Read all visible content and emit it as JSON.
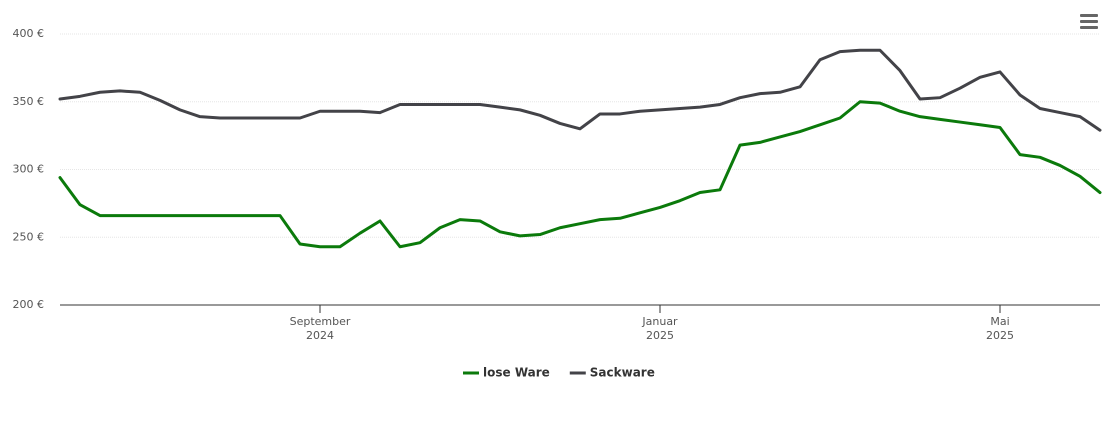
{
  "chart_data": {
    "type": "line",
    "categories": [
      null,
      null,
      null,
      null,
      null,
      null,
      null,
      null,
      null,
      null,
      null,
      null,
      null,
      "September 2024",
      null,
      null,
      null,
      null,
      null,
      null,
      null,
      null,
      null,
      null,
      null,
      null,
      null,
      null,
      null,
      null,
      "Januar 2025",
      null,
      null,
      null,
      null,
      null,
      null,
      null,
      null,
      null,
      null,
      null,
      null,
      null,
      null,
      null,
      null,
      "Mai 2025",
      null,
      null,
      null,
      null,
      null
    ],
    "series": [
      {
        "name": "lose Ware",
        "color": "#0b7a0b",
        "values": [
          294,
          274,
          266,
          266,
          266,
          266,
          266,
          266,
          266,
          266,
          266,
          266,
          245,
          243,
          243,
          253,
          262,
          243,
          246,
          257,
          263,
          262,
          254,
          251,
          252,
          257,
          260,
          263,
          264,
          268,
          272,
          277,
          283,
          285,
          318,
          320,
          324,
          328,
          333,
          338,
          350,
          349,
          343,
          339,
          337,
          335,
          333,
          331,
          311,
          309,
          303,
          295,
          283
        ]
      },
      {
        "name": "Sackware",
        "color": "#434348",
        "values": [
          352,
          354,
          357,
          358,
          357,
          351,
          344,
          339,
          338,
          338,
          338,
          338,
          338,
          343,
          343,
          343,
          342,
          348,
          348,
          348,
          348,
          348,
          346,
          344,
          340,
          334,
          330,
          341,
          341,
          343,
          344,
          345,
          346,
          348,
          353,
          356,
          357,
          361,
          381,
          387,
          388,
          388,
          373,
          352,
          353,
          360,
          368,
          372,
          355,
          345,
          342,
          339,
          329
        ]
      }
    ],
    "ylim": [
      200,
      400
    ],
    "yticks": [
      {
        "value": 200,
        "label": "200 €"
      },
      {
        "value": 250,
        "label": "250 €"
      },
      {
        "value": 300,
        "label": "300 €"
      },
      {
        "value": 350,
        "label": "350 €"
      },
      {
        "value": 400,
        "label": "400 €"
      }
    ],
    "grid": true,
    "legend": "bottom"
  }
}
